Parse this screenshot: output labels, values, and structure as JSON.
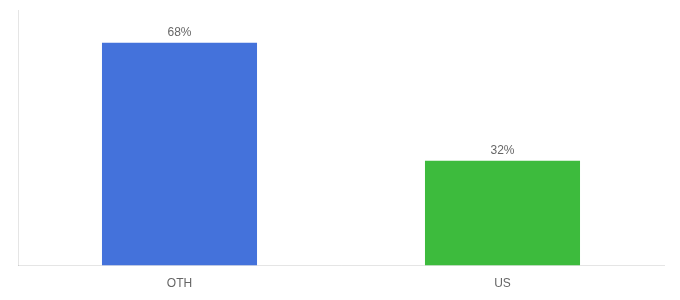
{
  "chart_data": {
    "type": "bar",
    "categories": [
      "OTH",
      "US"
    ],
    "values": [
      68,
      32
    ],
    "value_labels": [
      "68%",
      "32%"
    ],
    "data_labels": true,
    "colors": [
      "#4472db",
      "#3dbb3d"
    ],
    "ylim": [
      0,
      78
    ],
    "grid": false,
    "tick_labels": "x"
  }
}
